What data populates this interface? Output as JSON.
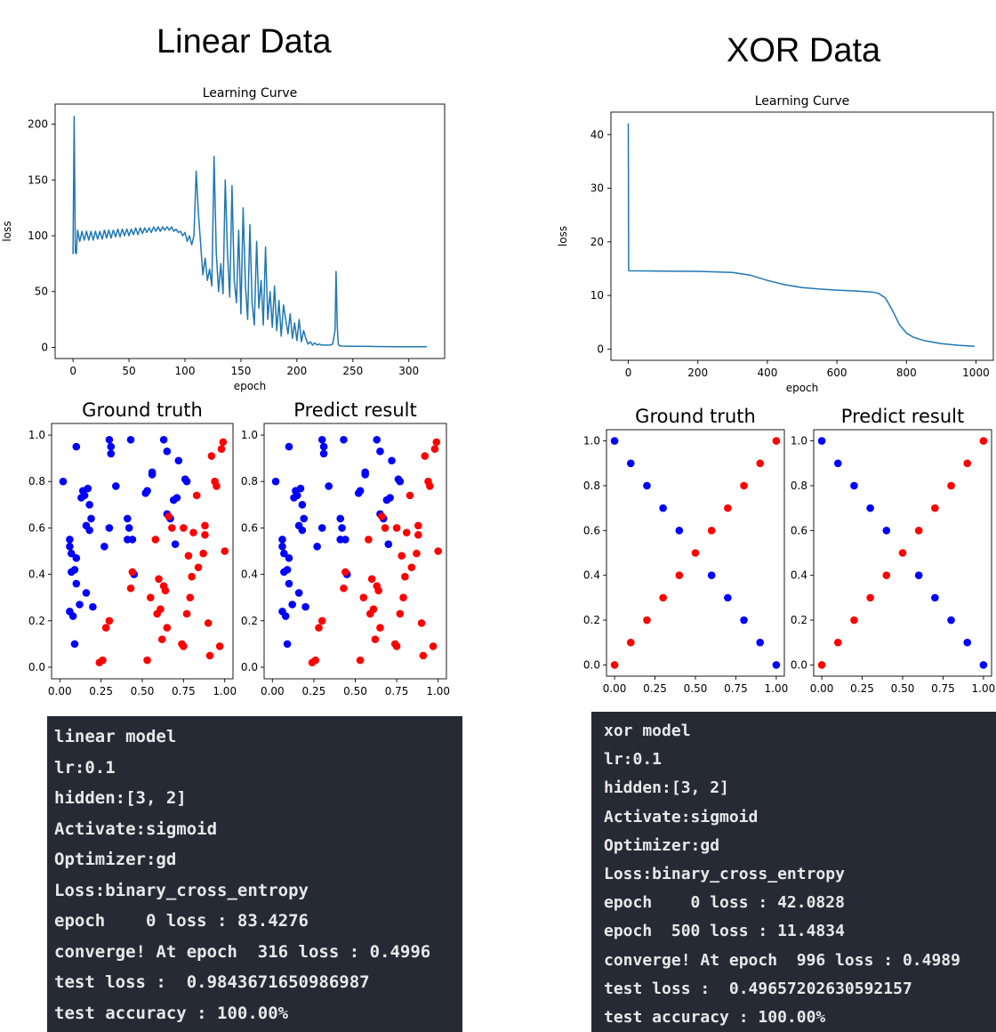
{
  "sections": {
    "linear": {
      "title": "Linear Data"
    },
    "xor": {
      "title": "XOR Data"
    }
  },
  "colors": {
    "line": "#1f77b4",
    "class0": "#0000ff",
    "class1": "#ff0000",
    "console_bg": "#262a35",
    "console_text": "#e8e8e8"
  },
  "chart_data": [
    {
      "id": "linear-learning-curve",
      "type": "line",
      "title": "Learning Curve",
      "xlabel": "epoch",
      "ylabel": "loss",
      "xlim": [
        -16,
        332
      ],
      "ylim": [
        -10,
        218
      ],
      "xticks": [
        0,
        50,
        100,
        150,
        200,
        250,
        300
      ],
      "yticks": [
        0,
        50,
        100,
        150,
        200
      ],
      "grid": false,
      "description_of_shape": "oscillating loss, spike to ~207 at epoch 1, band ~95-105 until ~100, spikes up to ~170, decays to ~0, spike ~68 at epoch 235, flat ~0.5 to epoch 316",
      "x": [
        0,
        1,
        2,
        3,
        4,
        6,
        8,
        10,
        12,
        14,
        16,
        18,
        20,
        22,
        24,
        26,
        28,
        30,
        32,
        34,
        36,
        38,
        40,
        42,
        44,
        46,
        48,
        50,
        52,
        54,
        56,
        58,
        60,
        62,
        64,
        66,
        68,
        70,
        72,
        74,
        76,
        78,
        80,
        82,
        84,
        86,
        88,
        90,
        92,
        94,
        96,
        98,
        100,
        102,
        104,
        106,
        108,
        110,
        112,
        114,
        116,
        118,
        120,
        122,
        124,
        126,
        128,
        130,
        132,
        134,
        136,
        138,
        140,
        142,
        144,
        146,
        148,
        150,
        152,
        154,
        156,
        158,
        160,
        162,
        164,
        166,
        168,
        170,
        172,
        174,
        176,
        178,
        180,
        182,
        184,
        186,
        188,
        190,
        192,
        194,
        196,
        198,
        200,
        202,
        204,
        206,
        208,
        210,
        212,
        214,
        216,
        218,
        220,
        222,
        224,
        226,
        228,
        230,
        232,
        234,
        235,
        236,
        237,
        238,
        240,
        250,
        260,
        270,
        280,
        290,
        300,
        310,
        316
      ],
      "y": [
        83.4,
        207,
        85,
        84,
        105,
        95,
        104,
        96,
        104,
        96,
        104,
        96,
        104,
        97,
        104,
        97,
        105,
        98,
        105,
        98,
        105,
        99,
        106,
        99,
        106,
        100,
        106,
        100,
        106,
        101,
        107,
        101,
        107,
        102,
        107,
        103,
        107,
        103,
        108,
        104,
        108,
        104,
        108,
        105,
        108,
        105,
        108,
        104,
        106,
        103,
        104,
        100,
        103,
        95,
        100,
        92,
        100,
        158,
        120,
        93,
        65,
        80,
        60,
        70,
        55,
        171,
        85,
        50,
        75,
        48,
        150,
        85,
        45,
        145,
        60,
        40,
        105,
        30,
        125,
        55,
        25,
        110,
        40,
        20,
        95,
        35,
        60,
        20,
        90,
        25,
        50,
        18,
        55,
        15,
        42,
        10,
        38,
        25,
        12,
        30,
        8,
        22,
        6,
        25,
        5,
        15,
        8,
        3,
        5,
        2,
        4,
        2,
        3,
        2,
        2,
        2,
        2,
        2,
        3,
        15,
        68,
        20,
        3,
        1.5,
        1.2,
        1,
        0.9,
        0.8,
        0.7,
        0.6,
        0.55,
        0.5,
        0.5
      ]
    },
    {
      "id": "xor-learning-curve",
      "type": "line",
      "title": "Learning Curve",
      "xlabel": "epoch",
      "ylabel": "loss",
      "xlim": [
        -50,
        1050
      ],
      "ylim": [
        -2.1,
        44.2
      ],
      "xticks": [
        0,
        200,
        400,
        600,
        800,
        1000
      ],
      "yticks": [
        0,
        10,
        20,
        30,
        40
      ],
      "grid": false,
      "x": [
        0,
        1,
        3,
        50,
        100,
        200,
        300,
        350,
        400,
        450,
        500,
        550,
        600,
        650,
        700,
        720,
        740,
        760,
        780,
        800,
        820,
        850,
        900,
        950,
        996
      ],
      "y": [
        42.08,
        14.7,
        14.6,
        14.58,
        14.55,
        14.5,
        14.3,
        13.8,
        12.8,
        12.0,
        11.48,
        11.2,
        11.0,
        10.85,
        10.65,
        10.4,
        9.5,
        7.2,
        4.5,
        3.0,
        2.2,
        1.6,
        1.0,
        0.7,
        0.4989
      ]
    },
    {
      "id": "linear-ground-truth",
      "type": "scatter",
      "title": "Ground truth",
      "xlim": [
        -0.05,
        1.05
      ],
      "ylim": [
        -0.05,
        1.05
      ],
      "xticks": [
        "0.00",
        "0.25",
        "0.50",
        "0.75",
        "1.00"
      ],
      "yticks": [
        "0.0",
        "0.2",
        "0.4",
        "0.6",
        "0.8",
        "1.0"
      ],
      "class0_points": [
        [
          0.06,
          0.55
        ],
        [
          0.06,
          0.52
        ],
        [
          0.07,
          0.49
        ],
        [
          0.06,
          0.24
        ],
        [
          0.07,
          0.41
        ],
        [
          0.08,
          0.22
        ],
        [
          0.09,
          0.1
        ],
        [
          0.09,
          0.42
        ],
        [
          0.1,
          0.47
        ],
        [
          0.1,
          0.36
        ],
        [
          0.1,
          0.95
        ],
        [
          0.12,
          0.27
        ],
        [
          0.14,
          0.76
        ],
        [
          0.15,
          0.74
        ],
        [
          0.16,
          0.61
        ],
        [
          0.16,
          0.32
        ],
        [
          0.17,
          0.77
        ],
        [
          0.18,
          0.7
        ],
        [
          0.18,
          0.59
        ],
        [
          0.19,
          0.64
        ],
        [
          0.2,
          0.26
        ],
        [
          0.27,
          0.52
        ],
        [
          0.3,
          0.6
        ],
        [
          0.3,
          0.98
        ],
        [
          0.31,
          0.95
        ],
        [
          0.31,
          0.92
        ],
        [
          0.34,
          0.78
        ],
        [
          0.41,
          0.64
        ],
        [
          0.41,
          0.55
        ],
        [
          0.42,
          0.6
        ],
        [
          0.43,
          0.98
        ],
        [
          0.44,
          0.55
        ],
        [
          0.45,
          0.4
        ],
        [
          0.52,
          0.75
        ],
        [
          0.53,
          0.76
        ],
        [
          0.56,
          0.84
        ],
        [
          0.56,
          0.83
        ],
        [
          0.63,
          0.98
        ],
        [
          0.65,
          0.93
        ],
        [
          0.65,
          0.66
        ],
        [
          0.67,
          0.64
        ],
        [
          0.69,
          0.72
        ],
        [
          0.7,
          0.53
        ],
        [
          0.71,
          0.73
        ],
        [
          0.72,
          0.89
        ],
        [
          0.76,
          0.81
        ],
        [
          0.77,
          0.8
        ],
        [
          0.02,
          0.8
        ],
        [
          0.13,
          0.73
        ]
      ],
      "class1_points": [
        [
          0.24,
          0.02
        ],
        [
          0.26,
          0.03
        ],
        [
          0.28,
          0.17
        ],
        [
          0.3,
          0.2
        ],
        [
          0.43,
          0.34
        ],
        [
          0.44,
          0.41
        ],
        [
          0.53,
          0.03
        ],
        [
          0.55,
          0.3
        ],
        [
          0.58,
          0.55
        ],
        [
          0.59,
          0.23
        ],
        [
          0.6,
          0.38
        ],
        [
          0.61,
          0.25
        ],
        [
          0.62,
          0.12
        ],
        [
          0.63,
          0.35
        ],
        [
          0.64,
          0.33
        ],
        [
          0.66,
          0.65
        ],
        [
          0.68,
          0.6
        ],
        [
          0.74,
          0.1
        ],
        [
          0.75,
          0.09
        ],
        [
          0.75,
          0.6
        ],
        [
          0.77,
          0.23
        ],
        [
          0.78,
          0.48
        ],
        [
          0.8,
          0.39
        ],
        [
          0.81,
          0.58
        ],
        [
          0.83,
          0.74
        ],
        [
          0.84,
          0.43
        ],
        [
          0.87,
          0.49
        ],
        [
          0.88,
          0.61
        ],
        [
          0.88,
          0.57
        ],
        [
          0.9,
          0.19
        ],
        [
          0.91,
          0.05
        ],
        [
          0.92,
          0.91
        ],
        [
          0.94,
          0.8
        ],
        [
          0.95,
          0.78
        ],
        [
          0.97,
          0.09
        ],
        [
          0.98,
          0.94
        ],
        [
          0.99,
          0.97
        ],
        [
          1.0,
          0.5
        ],
        [
          0.79,
          0.3
        ],
        [
          0.65,
          0.17
        ]
      ]
    },
    {
      "id": "linear-predict-result",
      "type": "scatter",
      "title": "Predict result",
      "xlim": [
        -0.05,
        1.05
      ],
      "ylim": [
        -0.05,
        1.05
      ],
      "xticks": [
        "0.00",
        "0.25",
        "0.50",
        "0.75",
        "1.00"
      ],
      "yticks": [
        "0.0",
        "0.2",
        "0.4",
        "0.6",
        "0.8",
        "1.0"
      ],
      "same_as": "linear-ground-truth"
    },
    {
      "id": "xor-ground-truth",
      "type": "scatter",
      "title": "Ground truth",
      "xlim": [
        -0.05,
        1.05
      ],
      "ylim": [
        -0.05,
        1.05
      ],
      "xticks": [
        "0.00",
        "0.25",
        "0.50",
        "0.75",
        "1.00"
      ],
      "yticks": [
        "0.0",
        "0.2",
        "0.4",
        "0.6",
        "0.8",
        "1.0"
      ],
      "class0_points": [
        [
          0.0,
          1.0
        ],
        [
          0.1,
          0.9
        ],
        [
          0.2,
          0.8
        ],
        [
          0.3,
          0.7
        ],
        [
          0.4,
          0.6
        ],
        [
          0.6,
          0.4
        ],
        [
          0.7,
          0.3
        ],
        [
          0.8,
          0.2
        ],
        [
          0.9,
          0.1
        ],
        [
          1.0,
          0.0
        ]
      ],
      "class1_points": [
        [
          0.0,
          0.0
        ],
        [
          0.1,
          0.1
        ],
        [
          0.2,
          0.2
        ],
        [
          0.3,
          0.3
        ],
        [
          0.4,
          0.4
        ],
        [
          0.5,
          0.5
        ],
        [
          0.6,
          0.6
        ],
        [
          0.7,
          0.7
        ],
        [
          0.8,
          0.8
        ],
        [
          0.9,
          0.9
        ],
        [
          1.0,
          1.0
        ]
      ]
    },
    {
      "id": "xor-predict-result",
      "type": "scatter",
      "title": "Predict result",
      "xlim": [
        -0.05,
        1.05
      ],
      "ylim": [
        -0.05,
        1.05
      ],
      "xticks": [
        "0.00",
        "0.25",
        "0.50",
        "0.75",
        "1.00"
      ],
      "yticks": [
        "0.0",
        "0.2",
        "0.4",
        "0.6",
        "0.8",
        "1.0"
      ],
      "same_as": "xor-ground-truth"
    }
  ],
  "consoles": {
    "linear": {
      "lines": [
        "linear model",
        "lr:0.1",
        "hidden:[3, 2]",
        "Activate:sigmoid",
        "Optimizer:gd",
        "Loss:binary_cross_entropy",
        "epoch    0 loss : 83.4276",
        "converge! At epoch  316 loss : 0.4996",
        "test loss :  0.9843671650986987",
        "test accuracy : 100.00%"
      ]
    },
    "xor": {
      "lines": [
        "xor model",
        "lr:0.1",
        "hidden:[3, 2]",
        "Activate:sigmoid",
        "Optimizer:gd",
        "Loss:binary_cross_entropy",
        "epoch    0 loss : 42.0828",
        "epoch  500 loss : 11.4834",
        "converge! At epoch  996 loss : 0.4989",
        "test loss :  0.49657202630592157",
        "test accuracy : 100.00%"
      ]
    }
  }
}
